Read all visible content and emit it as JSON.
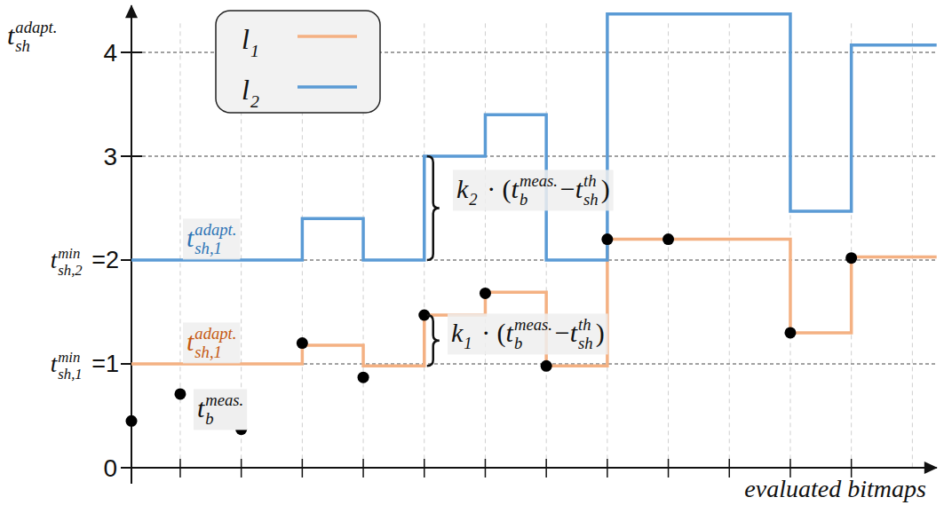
{
  "chart_data": {
    "type": "line",
    "x_label": "evaluated bitmaps",
    "y_label": [
      {
        "text": "t",
        "sub": "sh",
        "sup": "adapt."
      }
    ],
    "xlim": [
      0.2,
      13.4
    ],
    "xticks": [
      1,
      2,
      3,
      4,
      5,
      6,
      7,
      8,
      9,
      10,
      11,
      12,
      13
    ],
    "ylim": [
      0,
      4.45
    ],
    "yticks": [
      0,
      {
        "value": 1,
        "label": [
          {
            "text": "t",
            "sub": "sh,1",
            "sup": "min"
          },
          {
            "text": " =1"
          }
        ]
      },
      {
        "value": 2,
        "label": [
          {
            "text": "t",
            "sub": "sh,2",
            "sup": "min"
          },
          {
            "text": " =2"
          }
        ]
      },
      3,
      4
    ],
    "grid": true,
    "legend": "upper left",
    "tick_labels": "y",
    "series": [
      {
        "name": [
          {
            "text": "l",
            "sub": "1"
          }
        ],
        "type": "line",
        "line_style": "step",
        "color": "#f4b183",
        "x": [
          0.2,
          1,
          2,
          3,
          4,
          5,
          6,
          7,
          8,
          9,
          10,
          11,
          12
        ],
        "values": [
          1,
          1,
          1,
          1.18,
          0.98,
          1.47,
          1.69,
          0.98,
          2.2,
          2.2,
          2.2,
          1.3,
          2.03
        ]
      },
      {
        "name": [
          {
            "text": "l",
            "sub": "2"
          }
        ],
        "type": "line",
        "line_style": "step",
        "color": "#5b9bd5",
        "x": [
          0.2,
          1,
          2,
          3,
          4,
          5,
          6,
          7,
          8,
          9,
          10,
          11,
          12
        ],
        "values": [
          2,
          2,
          2,
          2.4,
          2,
          3,
          3.4,
          2,
          4.37,
          4.37,
          4.37,
          2.47,
          4.07
        ]
      },
      {
        "name": [
          {
            "text": "t",
            "sub": "b",
            "sup": "meas."
          }
        ],
        "type": "scatter",
        "marker": "circle",
        "color": "#000000",
        "x": [
          0.2,
          1,
          2,
          3,
          4,
          5,
          6,
          7,
          8,
          9,
          11,
          12
        ],
        "values": [
          0.45,
          0.71,
          0.37,
          1.2,
          0.87,
          1.47,
          1.68,
          0.98,
          2.2,
          2.2,
          1.3,
          2.02
        ]
      }
    ],
    "annotations": [
      {
        "text": [
          {
            "text": "t",
            "sub": "sh,1",
            "sup": "adapt."
          }
        ],
        "color": "#2e75b6"
      },
      {
        "text": [
          {
            "text": "t",
            "sub": "sh,1",
            "sup": "adapt."
          }
        ],
        "color": "#c55a11"
      },
      {
        "text": [
          {
            "text": "k",
            "sub": "2"
          },
          {
            "text": " · ("
          },
          {
            "text": "t",
            "sub": "b",
            "sup": "meas."
          },
          {
            "text": "−"
          },
          {
            "text": "t",
            "sub": "sh",
            "sup": "th"
          },
          {
            "text": ")"
          }
        ]
      },
      {
        "text": [
          {
            "text": "k",
            "sub": "1"
          },
          {
            "text": " · ("
          },
          {
            "text": "t",
            "sub": "b",
            "sup": "meas."
          },
          {
            "text": "−"
          },
          {
            "text": "t",
            "sub": "sh",
            "sup": "th"
          },
          {
            "text": ")"
          }
        ]
      }
    ]
  }
}
